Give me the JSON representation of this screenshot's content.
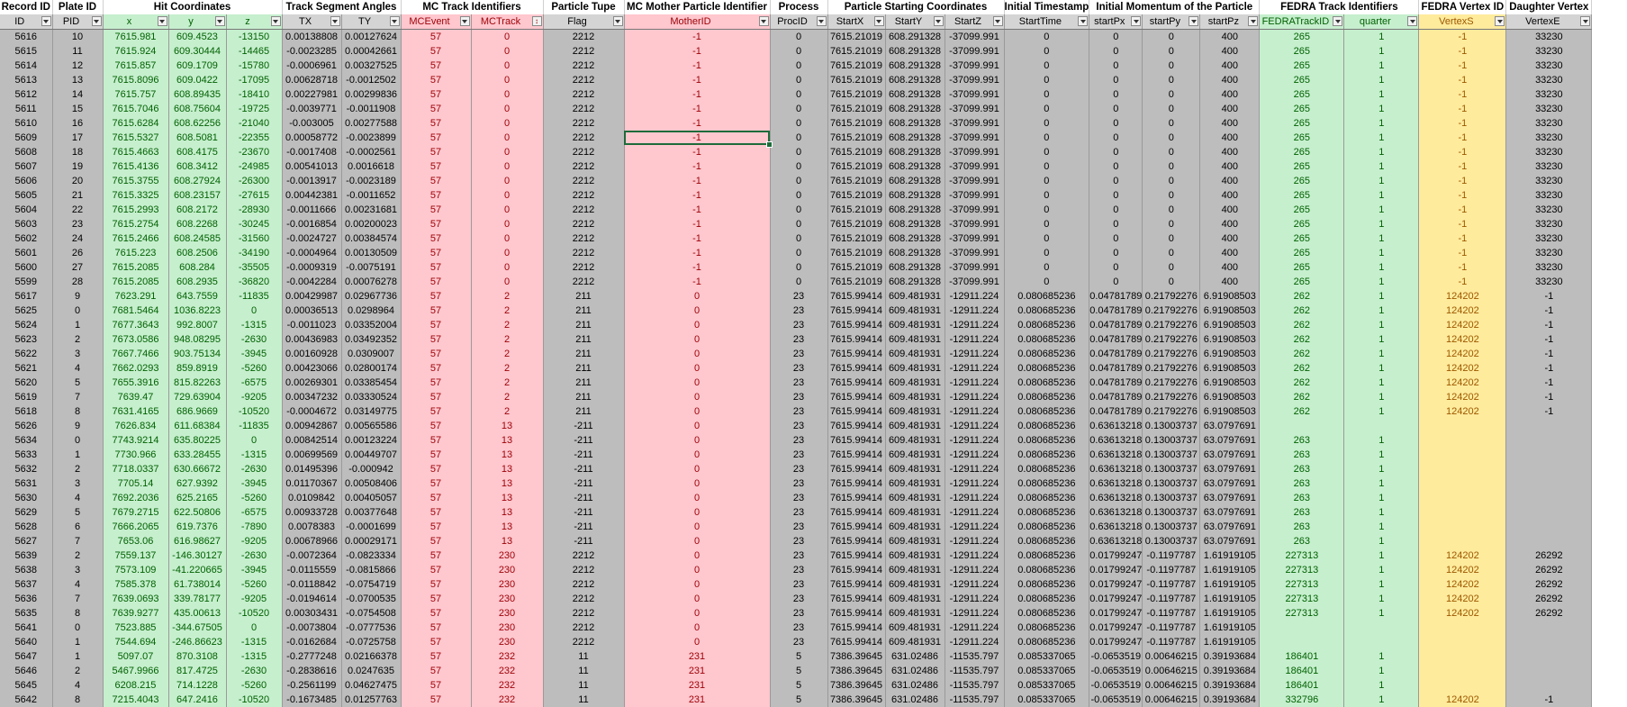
{
  "groups": [
    {
      "label": "Record ID",
      "span": 1
    },
    {
      "label": "Plate ID",
      "span": 1
    },
    {
      "label": "Hit Coordinates",
      "span": 3
    },
    {
      "label": "Track Segment Angles",
      "span": 2
    },
    {
      "label": "MC Track Identifiers",
      "span": 2
    },
    {
      "label": "Particle Tupe",
      "span": 1
    },
    {
      "label": "MC Mother Particle Identifier",
      "span": 1
    },
    {
      "label": "Process",
      "span": 1
    },
    {
      "label": "Particle Starting Coordinates",
      "span": 3
    },
    {
      "label": "Initial Timestamp",
      "span": 1
    },
    {
      "label": "Initial Momentum of the Particle",
      "span": 3
    },
    {
      "label": "FEDRA Track Identifiers",
      "span": 2
    },
    {
      "label": "FEDRA Vertex ID",
      "span": 1
    },
    {
      "label": "Daughter Vertex",
      "span": 1
    }
  ],
  "columns": [
    {
      "label": "ID",
      "color": "grey"
    },
    {
      "label": "PID",
      "color": "grey"
    },
    {
      "label": "x",
      "color": "green"
    },
    {
      "label": "y",
      "color": "green"
    },
    {
      "label": "z",
      "color": "green"
    },
    {
      "label": "TX",
      "color": "grey"
    },
    {
      "label": "TY",
      "color": "grey"
    },
    {
      "label": "MCEvent",
      "color": "red"
    },
    {
      "label": "MCTrack",
      "color": "red",
      "sorted": true
    },
    {
      "label": "Flag",
      "color": "grey"
    },
    {
      "label": "MotherID",
      "color": "red"
    },
    {
      "label": "ProcID",
      "color": "grey"
    },
    {
      "label": "StartX",
      "color": "grey"
    },
    {
      "label": "StartY",
      "color": "grey"
    },
    {
      "label": "StartZ",
      "color": "grey"
    },
    {
      "label": "StartTime",
      "color": "grey"
    },
    {
      "label": "startPx",
      "color": "grey"
    },
    {
      "label": "startPy",
      "color": "grey"
    },
    {
      "label": "startPz",
      "color": "grey"
    },
    {
      "label": "FEDRATrackID",
      "color": "green"
    },
    {
      "label": "quarter",
      "color": "green"
    },
    {
      "label": "VertexS",
      "color": "yellow"
    },
    {
      "label": "VertexE",
      "color": "grey"
    }
  ],
  "selected_cell": {
    "row": 7,
    "column": "MotherID"
  },
  "rows": [
    [
      "5616",
      "10",
      "7615.981",
      "609.4523",
      "-13150",
      "0.00138808",
      "0.00127624",
      "57",
      "0",
      "2212",
      "-1",
      "0",
      "7615.21019",
      "608.291328",
      "-37099.991",
      "0",
      "0",
      "0",
      "400",
      "265",
      "1",
      "-1",
      "33230"
    ],
    [
      "5615",
      "11",
      "7615.924",
      "609.30444",
      "-14465",
      "-0.0023285",
      "0.00042661",
      "57",
      "0",
      "2212",
      "-1",
      "0",
      "7615.21019",
      "608.291328",
      "-37099.991",
      "0",
      "0",
      "0",
      "400",
      "265",
      "1",
      "-1",
      "33230"
    ],
    [
      "5614",
      "12",
      "7615.857",
      "609.1709",
      "-15780",
      "-0.0006961",
      "0.00327525",
      "57",
      "0",
      "2212",
      "-1",
      "0",
      "7615.21019",
      "608.291328",
      "-37099.991",
      "0",
      "0",
      "0",
      "400",
      "265",
      "1",
      "-1",
      "33230"
    ],
    [
      "5613",
      "13",
      "7615.8096",
      "609.0422",
      "-17095",
      "0.00628718",
      "-0.0012502",
      "57",
      "0",
      "2212",
      "-1",
      "0",
      "7615.21019",
      "608.291328",
      "-37099.991",
      "0",
      "0",
      "0",
      "400",
      "265",
      "1",
      "-1",
      "33230"
    ],
    [
      "5612",
      "14",
      "7615.757",
      "608.89435",
      "-18410",
      "0.00227981",
      "0.00299836",
      "57",
      "0",
      "2212",
      "-1",
      "0",
      "7615.21019",
      "608.291328",
      "-37099.991",
      "0",
      "0",
      "0",
      "400",
      "265",
      "1",
      "-1",
      "33230"
    ],
    [
      "5611",
      "15",
      "7615.7046",
      "608.75604",
      "-19725",
      "-0.0039771",
      "-0.0011908",
      "57",
      "0",
      "2212",
      "-1",
      "0",
      "7615.21019",
      "608.291328",
      "-37099.991",
      "0",
      "0",
      "0",
      "400",
      "265",
      "1",
      "-1",
      "33230"
    ],
    [
      "5610",
      "16",
      "7615.6284",
      "608.62256",
      "-21040",
      "-0.003005",
      "0.00277588",
      "57",
      "0",
      "2212",
      "-1",
      "0",
      "7615.21019",
      "608.291328",
      "-37099.991",
      "0",
      "0",
      "0",
      "400",
      "265",
      "1",
      "-1",
      "33230"
    ],
    [
      "5609",
      "17",
      "7615.5327",
      "608.5081",
      "-22355",
      "0.00058772",
      "-0.0023899",
      "57",
      "0",
      "2212",
      "-1",
      "0",
      "7615.21019",
      "608.291328",
      "-37099.991",
      "0",
      "0",
      "0",
      "400",
      "265",
      "1",
      "-1",
      "33230"
    ],
    [
      "5608",
      "18",
      "7615.4663",
      "608.4175",
      "-23670",
      "-0.0017408",
      "-0.0002561",
      "57",
      "0",
      "2212",
      "-1",
      "0",
      "7615.21019",
      "608.291328",
      "-37099.991",
      "0",
      "0",
      "0",
      "400",
      "265",
      "1",
      "-1",
      "33230"
    ],
    [
      "5607",
      "19",
      "7615.4136",
      "608.3412",
      "-24985",
      "0.00541013",
      "0.0016618",
      "57",
      "0",
      "2212",
      "-1",
      "0",
      "7615.21019",
      "608.291328",
      "-37099.991",
      "0",
      "0",
      "0",
      "400",
      "265",
      "1",
      "-1",
      "33230"
    ],
    [
      "5606",
      "20",
      "7615.3755",
      "608.27924",
      "-26300",
      "-0.0013917",
      "-0.0023189",
      "57",
      "0",
      "2212",
      "-1",
      "0",
      "7615.21019",
      "608.291328",
      "-37099.991",
      "0",
      "0",
      "0",
      "400",
      "265",
      "1",
      "-1",
      "33230"
    ],
    [
      "5605",
      "21",
      "7615.3325",
      "608.23157",
      "-27615",
      "0.00442381",
      "-0.0011652",
      "57",
      "0",
      "2212",
      "-1",
      "0",
      "7615.21019",
      "608.291328",
      "-37099.991",
      "0",
      "0",
      "0",
      "400",
      "265",
      "1",
      "-1",
      "33230"
    ],
    [
      "5604",
      "22",
      "7615.2993",
      "608.2172",
      "-28930",
      "-0.0011666",
      "0.00231681",
      "57",
      "0",
      "2212",
      "-1",
      "0",
      "7615.21019",
      "608.291328",
      "-37099.991",
      "0",
      "0",
      "0",
      "400",
      "265",
      "1",
      "-1",
      "33230"
    ],
    [
      "5603",
      "23",
      "7615.2754",
      "608.2268",
      "-30245",
      "-0.0016854",
      "0.00200023",
      "57",
      "0",
      "2212",
      "-1",
      "0",
      "7615.21019",
      "608.291328",
      "-37099.991",
      "0",
      "0",
      "0",
      "400",
      "265",
      "1",
      "-1",
      "33230"
    ],
    [
      "5602",
      "24",
      "7615.2466",
      "608.24585",
      "-31560",
      "-0.0024727",
      "0.00384574",
      "57",
      "0",
      "2212",
      "-1",
      "0",
      "7615.21019",
      "608.291328",
      "-37099.991",
      "0",
      "0",
      "0",
      "400",
      "265",
      "1",
      "-1",
      "33230"
    ],
    [
      "5601",
      "26",
      "7615.223",
      "608.2506",
      "-34190",
      "-0.0004964",
      "0.00130509",
      "57",
      "0",
      "2212",
      "-1",
      "0",
      "7615.21019",
      "608.291328",
      "-37099.991",
      "0",
      "0",
      "0",
      "400",
      "265",
      "1",
      "-1",
      "33230"
    ],
    [
      "5600",
      "27",
      "7615.2085",
      "608.284",
      "-35505",
      "-0.0009319",
      "-0.0075191",
      "57",
      "0",
      "2212",
      "-1",
      "0",
      "7615.21019",
      "608.291328",
      "-37099.991",
      "0",
      "0",
      "0",
      "400",
      "265",
      "1",
      "-1",
      "33230"
    ],
    [
      "5599",
      "28",
      "7615.2085",
      "608.2935",
      "-36820",
      "-0.0042284",
      "0.00076278",
      "57",
      "0",
      "2212",
      "-1",
      "0",
      "7615.21019",
      "608.291328",
      "-37099.991",
      "0",
      "0",
      "0",
      "400",
      "265",
      "1",
      "-1",
      "33230"
    ],
    [
      "5617",
      "9",
      "7623.291",
      "643.7559",
      "-11835",
      "0.00429987",
      "0.02967736",
      "57",
      "2",
      "211",
      "0",
      "23",
      "7615.99414",
      "609.481931",
      "-12911.224",
      "0.080685236",
      "0.04781789",
      "0.21792276",
      "6.91908503",
      "262",
      "1",
      "124202",
      "-1"
    ],
    [
      "5625",
      "0",
      "7681.5464",
      "1036.8223",
      "0",
      "0.00036513",
      "0.0298964",
      "57",
      "2",
      "211",
      "0",
      "23",
      "7615.99414",
      "609.481931",
      "-12911.224",
      "0.080685236",
      "0.04781789",
      "0.21792276",
      "6.91908503",
      "262",
      "1",
      "124202",
      "-1"
    ],
    [
      "5624",
      "1",
      "7677.3643",
      "992.8007",
      "-1315",
      "-0.0011023",
      "0.03352004",
      "57",
      "2",
      "211",
      "0",
      "23",
      "7615.99414",
      "609.481931",
      "-12911.224",
      "0.080685236",
      "0.04781789",
      "0.21792276",
      "6.91908503",
      "262",
      "1",
      "124202",
      "-1"
    ],
    [
      "5623",
      "2",
      "7673.0586",
      "948.08295",
      "-2630",
      "0.00436983",
      "0.03492352",
      "57",
      "2",
      "211",
      "0",
      "23",
      "7615.99414",
      "609.481931",
      "-12911.224",
      "0.080685236",
      "0.04781789",
      "0.21792276",
      "6.91908503",
      "262",
      "1",
      "124202",
      "-1"
    ],
    [
      "5622",
      "3",
      "7667.7466",
      "903.75134",
      "-3945",
      "0.00160928",
      "0.0309007",
      "57",
      "2",
      "211",
      "0",
      "23",
      "7615.99414",
      "609.481931",
      "-12911.224",
      "0.080685236",
      "0.04781789",
      "0.21792276",
      "6.91908503",
      "262",
      "1",
      "124202",
      "-1"
    ],
    [
      "5621",
      "4",
      "7662.0293",
      "859.8919",
      "-5260",
      "0.00423066",
      "0.02800174",
      "57",
      "2",
      "211",
      "0",
      "23",
      "7615.99414",
      "609.481931",
      "-12911.224",
      "0.080685236",
      "0.04781789",
      "0.21792276",
      "6.91908503",
      "262",
      "1",
      "124202",
      "-1"
    ],
    [
      "5620",
      "5",
      "7655.3916",
      "815.82263",
      "-6575",
      "0.00269301",
      "0.03385454",
      "57",
      "2",
      "211",
      "0",
      "23",
      "7615.99414",
      "609.481931",
      "-12911.224",
      "0.080685236",
      "0.04781789",
      "0.21792276",
      "6.91908503",
      "262",
      "1",
      "124202",
      "-1"
    ],
    [
      "5619",
      "7",
      "7639.47",
      "729.63904",
      "-9205",
      "0.00347232",
      "0.03330524",
      "57",
      "2",
      "211",
      "0",
      "23",
      "7615.99414",
      "609.481931",
      "-12911.224",
      "0.080685236",
      "0.04781789",
      "0.21792276",
      "6.91908503",
      "262",
      "1",
      "124202",
      "-1"
    ],
    [
      "5618",
      "8",
      "7631.4165",
      "686.9669",
      "-10520",
      "-0.0004672",
      "0.03149775",
      "57",
      "2",
      "211",
      "0",
      "23",
      "7615.99414",
      "609.481931",
      "-12911.224",
      "0.080685236",
      "0.04781789",
      "0.21792276",
      "6.91908503",
      "262",
      "1",
      "124202",
      "-1"
    ],
    [
      "5626",
      "9",
      "7626.834",
      "611.68384",
      "-11835",
      "0.00942867",
      "0.00565586",
      "57",
      "13",
      "-211",
      "0",
      "23",
      "7615.99414",
      "609.481931",
      "-12911.224",
      "0.080685236",
      "0.63613218",
      "0.13003737",
      "63.0797691",
      "",
      "",
      "",
      ""
    ],
    [
      "5634",
      "0",
      "7743.9214",
      "635.80225",
      "0",
      "0.00842514",
      "0.00123224",
      "57",
      "13",
      "-211",
      "0",
      "23",
      "7615.99414",
      "609.481931",
      "-12911.224",
      "0.080685236",
      "0.63613218",
      "0.13003737",
      "63.0797691",
      "263",
      "1",
      "",
      ""
    ],
    [
      "5633",
      "1",
      "7730.966",
      "633.28455",
      "-1315",
      "0.00699569",
      "0.00449707",
      "57",
      "13",
      "-211",
      "0",
      "23",
      "7615.99414",
      "609.481931",
      "-12911.224",
      "0.080685236",
      "0.63613218",
      "0.13003737",
      "63.0797691",
      "263",
      "1",
      "",
      ""
    ],
    [
      "5632",
      "2",
      "7718.0337",
      "630.66672",
      "-2630",
      "0.01495396",
      "-0.000942",
      "57",
      "13",
      "-211",
      "0",
      "23",
      "7615.99414",
      "609.481931",
      "-12911.224",
      "0.080685236",
      "0.63613218",
      "0.13003737",
      "63.0797691",
      "263",
      "1",
      "",
      ""
    ],
    [
      "5631",
      "3",
      "7705.14",
      "627.9392",
      "-3945",
      "0.01170367",
      "0.00508406",
      "57",
      "13",
      "-211",
      "0",
      "23",
      "7615.99414",
      "609.481931",
      "-12911.224",
      "0.080685236",
      "0.63613218",
      "0.13003737",
      "63.0797691",
      "263",
      "1",
      "",
      ""
    ],
    [
      "5630",
      "4",
      "7692.2036",
      "625.2165",
      "-5260",
      "0.0109842",
      "0.00405057",
      "57",
      "13",
      "-211",
      "0",
      "23",
      "7615.99414",
      "609.481931",
      "-12911.224",
      "0.080685236",
      "0.63613218",
      "0.13003737",
      "63.0797691",
      "263",
      "1",
      "",
      ""
    ],
    [
      "5629",
      "5",
      "7679.2715",
      "622.50806",
      "-6575",
      "0.00933728",
      "0.00377648",
      "57",
      "13",
      "-211",
      "0",
      "23",
      "7615.99414",
      "609.481931",
      "-12911.224",
      "0.080685236",
      "0.63613218",
      "0.13003737",
      "63.0797691",
      "263",
      "1",
      "",
      ""
    ],
    [
      "5628",
      "6",
      "7666.2065",
      "619.7376",
      "-7890",
      "0.0078383",
      "-0.0001699",
      "57",
      "13",
      "-211",
      "0",
      "23",
      "7615.99414",
      "609.481931",
      "-12911.224",
      "0.080685236",
      "0.63613218",
      "0.13003737",
      "63.0797691",
      "263",
      "1",
      "",
      ""
    ],
    [
      "5627",
      "7",
      "7653.06",
      "616.98627",
      "-9205",
      "0.00678966",
      "0.00029171",
      "57",
      "13",
      "-211",
      "0",
      "23",
      "7615.99414",
      "609.481931",
      "-12911.224",
      "0.080685236",
      "0.63613218",
      "0.13003737",
      "63.0797691",
      "263",
      "1",
      "",
      ""
    ],
    [
      "5639",
      "2",
      "7559.137",
      "-146.30127",
      "-2630",
      "-0.0072364",
      "-0.0823334",
      "57",
      "230",
      "2212",
      "0",
      "23",
      "7615.99414",
      "609.481931",
      "-12911.224",
      "0.080685236",
      "0.01799247",
      "-0.1197787",
      "1.61919105",
      "227313",
      "1",
      "124202",
      "26292"
    ],
    [
      "5638",
      "3",
      "7573.109",
      "-41.220665",
      "-3945",
      "-0.0115559",
      "-0.0815866",
      "57",
      "230",
      "2212",
      "0",
      "23",
      "7615.99414",
      "609.481931",
      "-12911.224",
      "0.080685236",
      "0.01799247",
      "-0.1197787",
      "1.61919105",
      "227313",
      "1",
      "124202",
      "26292"
    ],
    [
      "5637",
      "4",
      "7585.378",
      "61.738014",
      "-5260",
      "-0.0118842",
      "-0.0754719",
      "57",
      "230",
      "2212",
      "0",
      "23",
      "7615.99414",
      "609.481931",
      "-12911.224",
      "0.080685236",
      "0.01799247",
      "-0.1197787",
      "1.61919105",
      "227313",
      "1",
      "124202",
      "26292"
    ],
    [
      "5636",
      "7",
      "7639.0693",
      "339.78177",
      "-9205",
      "-0.0194614",
      "-0.0700535",
      "57",
      "230",
      "2212",
      "0",
      "23",
      "7615.99414",
      "609.481931",
      "-12911.224",
      "0.080685236",
      "0.01799247",
      "-0.1197787",
      "1.61919105",
      "227313",
      "1",
      "124202",
      "26292"
    ],
    [
      "5635",
      "8",
      "7639.9277",
      "435.00613",
      "-10520",
      "0.00303431",
      "-0.0754508",
      "57",
      "230",
      "2212",
      "0",
      "23",
      "7615.99414",
      "609.481931",
      "-12911.224",
      "0.080685236",
      "0.01799247",
      "-0.1197787",
      "1.61919105",
      "227313",
      "1",
      "124202",
      "26292"
    ],
    [
      "5641",
      "0",
      "7523.885",
      "-344.67505",
      "0",
      "-0.0073804",
      "-0.0777536",
      "57",
      "230",
      "2212",
      "0",
      "23",
      "7615.99414",
      "609.481931",
      "-12911.224",
      "0.080685236",
      "0.01799247",
      "-0.1197787",
      "1.61919105",
      "",
      "",
      "",
      ""
    ],
    [
      "5640",
      "1",
      "7544.694",
      "-246.86623",
      "-1315",
      "-0.0162684",
      "-0.0725758",
      "57",
      "230",
      "2212",
      "0",
      "23",
      "7615.99414",
      "609.481931",
      "-12911.224",
      "0.080685236",
      "0.01799247",
      "-0.1197787",
      "1.61919105",
      "",
      "",
      "",
      ""
    ],
    [
      "5647",
      "1",
      "5097.07",
      "870.3108",
      "-1315",
      "-0.2777248",
      "0.02166378",
      "57",
      "232",
      "11",
      "231",
      "5",
      "7386.39645",
      "631.02486",
      "-11535.797",
      "0.085337065",
      "-0.0653519",
      "0.00646215",
      "0.39193684",
      "186401",
      "1",
      "",
      ""
    ],
    [
      "5646",
      "2",
      "5467.9966",
      "817.4725",
      "-2630",
      "-0.2838616",
      "0.0247635",
      "57",
      "232",
      "11",
      "231",
      "5",
      "7386.39645",
      "631.02486",
      "-11535.797",
      "0.085337065",
      "-0.0653519",
      "0.00646215",
      "0.39193684",
      "186401",
      "1",
      "",
      ""
    ],
    [
      "5645",
      "4",
      "6208.215",
      "714.1228",
      "-5260",
      "-0.2561199",
      "0.04627475",
      "57",
      "232",
      "11",
      "231",
      "5",
      "7386.39645",
      "631.02486",
      "-11535.797",
      "0.085337065",
      "-0.0653519",
      "0.00646215",
      "0.39193684",
      "186401",
      "1",
      "",
      ""
    ],
    [
      "5642",
      "8",
      "7215.4043",
      "647.2416",
      "-10520",
      "-0.1673485",
      "0.01257763",
      "57",
      "232",
      "11",
      "231",
      "5",
      "7386.39645",
      "631.02486",
      "-11535.797",
      "0.085337065",
      "-0.0653519",
      "0.00646215",
      "0.39193684",
      "332796",
      "1",
      "124202",
      "-1"
    ]
  ]
}
